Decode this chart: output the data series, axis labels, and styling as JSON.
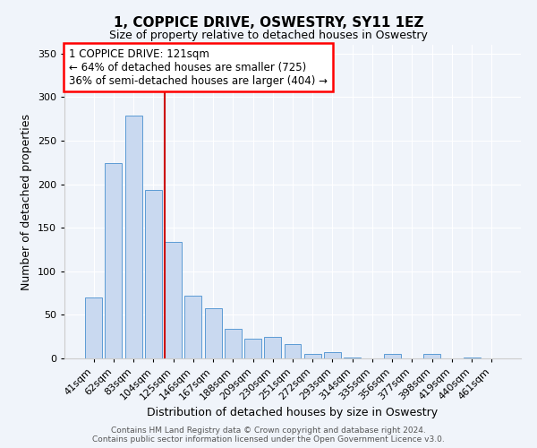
{
  "title": "1, COPPICE DRIVE, OSWESTRY, SY11 1EZ",
  "subtitle": "Size of property relative to detached houses in Oswestry",
  "xlabel": "Distribution of detached houses by size in Oswestry",
  "ylabel": "Number of detached properties",
  "bar_labels": [
    "41sqm",
    "62sqm",
    "83sqm",
    "104sqm",
    "125sqm",
    "146sqm",
    "167sqm",
    "188sqm",
    "209sqm",
    "230sqm",
    "251sqm",
    "272sqm",
    "293sqm",
    "314sqm",
    "335sqm",
    "356sqm",
    "377sqm",
    "398sqm",
    "419sqm",
    "440sqm",
    "461sqm"
  ],
  "bar_values": [
    70,
    224,
    279,
    193,
    134,
    72,
    58,
    34,
    23,
    25,
    16,
    5,
    7,
    1,
    0,
    5,
    0,
    5,
    0,
    1,
    0
  ],
  "bar_color": "#c9d9f0",
  "bar_edgecolor": "#5b9bd5",
  "vline_color": "#cc0000",
  "vline_x_index": 4,
  "annotation_box_text_line1": "1 COPPICE DRIVE: 121sqm",
  "annotation_box_text_line2": "← 64% of detached houses are smaller (725)",
  "annotation_box_text_line3": "36% of semi-detached houses are larger (404) →",
  "ylim": [
    0,
    360
  ],
  "yticks": [
    0,
    50,
    100,
    150,
    200,
    250,
    300,
    350
  ],
  "footer_line1": "Contains HM Land Registry data © Crown copyright and database right 2024.",
  "footer_line2": "Contains public sector information licensed under the Open Government Licence v3.0.",
  "bg_color": "#f0f4fa",
  "plot_bg_color": "#f0f4fa",
  "grid_color": "#ffffff",
  "title_fontsize": 11,
  "subtitle_fontsize": 9,
  "xlabel_fontsize": 9,
  "ylabel_fontsize": 9,
  "tick_fontsize": 8,
  "annot_fontsize": 8.5,
  "footer_fontsize": 6.5
}
